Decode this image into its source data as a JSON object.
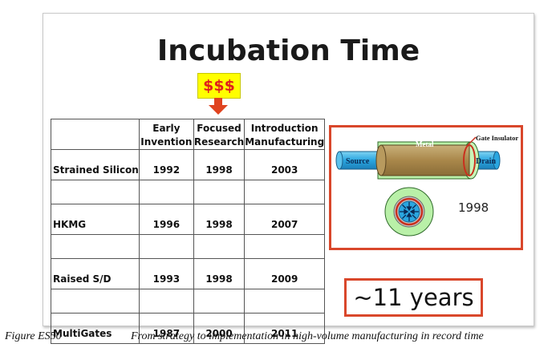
{
  "slide": {
    "title": "Incubation Time",
    "money_label": "$$$",
    "colors": {
      "highlight": "#ffff00",
      "accent_red": "#d9472b",
      "money_text": "#e0211c"
    }
  },
  "table": {
    "headers": [
      [
        "",
        ""
      ],
      [
        "Early",
        "Invention"
      ],
      [
        "Focused",
        "Research"
      ],
      [
        "Introduction",
        "Manufacturing"
      ]
    ],
    "rows": [
      {
        "label": "Strained Silicon",
        "early": "1992",
        "focused": "1998",
        "intro": "2003"
      },
      {
        "label": "HKMG",
        "early": "1996",
        "focused": "1998",
        "intro": "2007"
      },
      {
        "label": "Raised S/D",
        "early": "1993",
        "focused": "1998",
        "intro": "2009"
      },
      {
        "label": "MultiGates",
        "early": "1987",
        "focused": "2000",
        "intro": "2011"
      }
    ]
  },
  "figure": {
    "labels": {
      "metal": "Metal",
      "gate_insulator": "Gate Insulator",
      "source": "Source",
      "drain": "Drain"
    },
    "year": "1998"
  },
  "callout": {
    "text": "~11 years"
  },
  "caption": {
    "label": "Figure ES50",
    "text": "From strategy to implementation in high-volume manufacturing in record time"
  }
}
